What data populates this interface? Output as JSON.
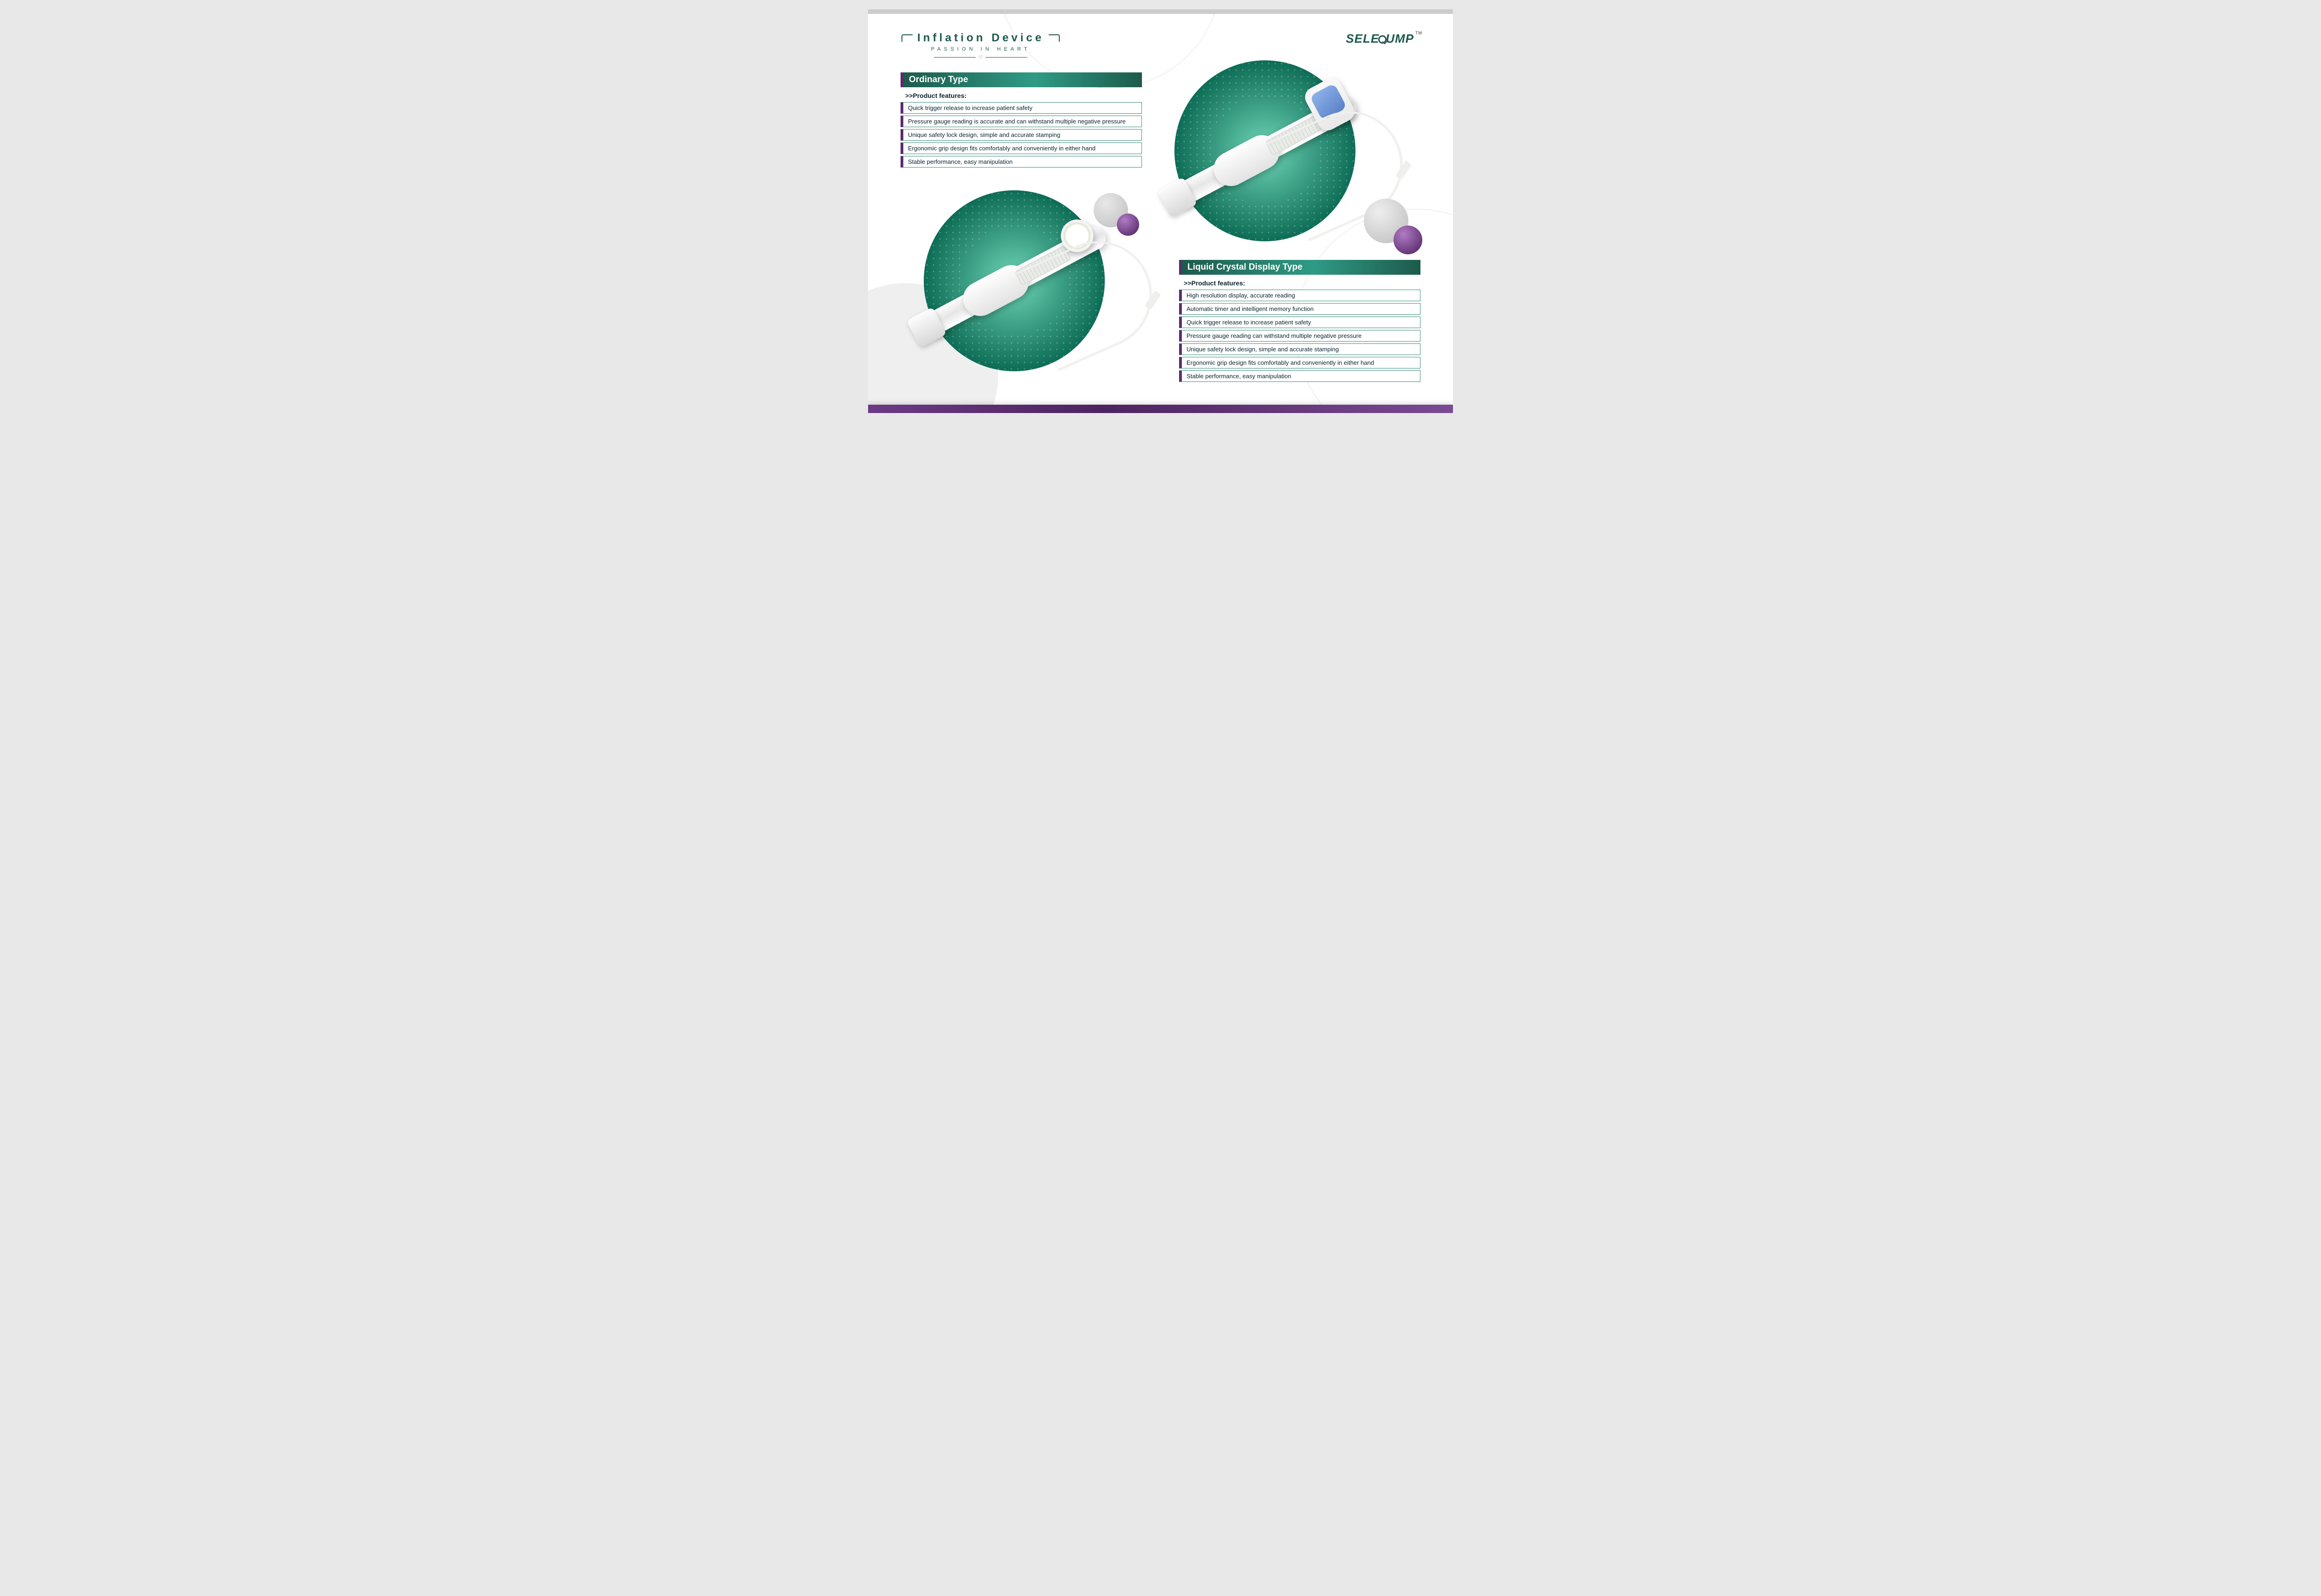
{
  "header": {
    "title": "Inflation Device",
    "subtitle": "PASSION IN HEART",
    "heart_glyph": "♡",
    "brand_left": "SELE",
    "brand_right": "UMP",
    "brand_tm": "TM"
  },
  "colors": {
    "brand_green": "#1d5a4c",
    "accent_purple": "#5a2d6e",
    "title_gradient_start": "#1d5a4c",
    "title_gradient_mid": "#2f9b85",
    "circle_inner": "#6fd6b8",
    "circle_outer": "#0a4f3f",
    "page_bg": "#ffffff",
    "footer_purple": "#4d235f"
  },
  "sections": {
    "ordinary": {
      "title": "Ordinary Type",
      "features_label": ">>Product features:",
      "features": [
        "Quick trigger release to increase patient safety",
        "Pressure gauge reading is accurate and can withstand multiple negative pressure",
        "Unique safety lock design, simple and accurate stamping",
        "Ergonomic grip design fits comfortably and conveniently in either hand",
        "Stable performance, easy manipulation"
      ]
    },
    "lcd": {
      "title": "Liquid Crystal Display Type",
      "features_label": ">>Product features:",
      "features": [
        "High resolution display, accurate reading",
        "Automatic timer and intelligent memory function",
        "Quick trigger release to increase patient safety",
        "Pressure gauge reading can withstand multiple negative pressure",
        "Unique safety lock design, simple and accurate stamping",
        "Ergonomic grip design fits comfortably and conveniently in either hand",
        "Stable performance, easy manipulation"
      ]
    }
  }
}
